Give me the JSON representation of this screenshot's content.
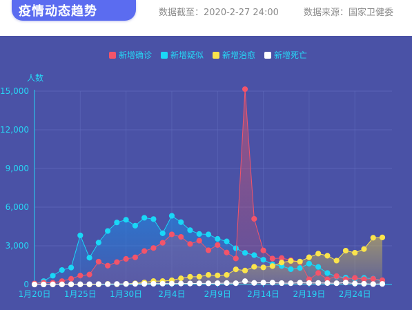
{
  "header": {
    "title": "疫情动态趋势",
    "data_time": "数据截至：2020-2-27 24:00",
    "data_source": "数据来源：国家卫健委"
  },
  "colors": {
    "confirmed": "#f3546a",
    "suspected": "#1ad7f7",
    "cured": "#fbe44c",
    "dead": "#ffffff",
    "background": "#4a52a6",
    "axis": "#27d6f5"
  },
  "chart_data": {
    "type": "line",
    "ylabel": "人数",
    "ylim": [
      0,
      15000
    ],
    "yticks": [
      "0",
      "3,000",
      "6,000",
      "9,000",
      "12,000",
      "15,000"
    ],
    "ytick_values": [
      0,
      3000,
      6000,
      9000,
      12000,
      15000
    ],
    "xtick_labels": [
      "1月20日",
      "1月25日",
      "1月30日",
      "2月4日",
      "2月9日",
      "2月14日",
      "2月19日",
      "2月24日"
    ],
    "xtick_indices": [
      0,
      5,
      10,
      15,
      20,
      25,
      30,
      35
    ],
    "legend": [
      "新增确诊",
      "新增疑似",
      "新增治愈",
      "新增死亡"
    ],
    "grid": true,
    "legend_position": "top-center",
    "x": [
      "1月20日",
      "1月21日",
      "1月22日",
      "1月23日",
      "1月24日",
      "1月25日",
      "1月26日",
      "1月27日",
      "1月28日",
      "1月29日",
      "1月30日",
      "1月31日",
      "2月1日",
      "2月2日",
      "2月3日",
      "2月4日",
      "2月5日",
      "2月6日",
      "2月7日",
      "2月8日",
      "2月9日",
      "2月10日",
      "2月11日",
      "2月12日",
      "2月13日",
      "2月14日",
      "2月15日",
      "2月16日",
      "2月17日",
      "2月18日",
      "2月19日",
      "2月20日",
      "2月21日",
      "2月22日",
      "2月23日",
      "2月24日",
      "2月25日",
      "2月26日",
      "2月27日"
    ],
    "series": [
      {
        "name": "新增确诊",
        "key": "confirmed",
        "values": [
          77,
          149,
          131,
          259,
          444,
          688,
          769,
          1771,
          1459,
          1737,
          1982,
          2102,
          2590,
          2829,
          3235,
          3887,
          3694,
          3143,
          3399,
          2656,
          3062,
          2478,
          2015,
          15152,
          5090,
          2641,
          2009,
          2048,
          1886,
          1749,
          394,
          889,
          397,
          648,
          409,
          508,
          406,
          433,
          327
        ]
      },
      {
        "name": "新增疑似",
        "key": "suspected",
        "values": [
          27,
          257,
          680,
          1118,
          1309,
          3806,
          2077,
          3248,
          4148,
          4812,
          5019,
          4562,
          5173,
          5072,
          3971,
          5328,
          4833,
          4214,
          3916,
          3885,
          3536,
          3342,
          2807,
          2450,
          2277,
          1918,
          1563,
          1432,
          1185,
          1277,
          1614,
          1361,
          882,
          620,
          530,
          439,
          508,
          452,
          248
        ]
      },
      {
        "name": "新增治愈",
        "key": "cured",
        "values": [
          0,
          3,
          0,
          6,
          6,
          11,
          2,
          9,
          43,
          21,
          47,
          85,
          157,
          262,
          262,
          325,
          477,
          596,
          601,
          744,
          706,
          744,
          1171,
          1081,
          1373,
          1323,
          1425,
          1701,
          1824,
          1779,
          2109,
          2393,
          2230,
          1852,
          2621,
          2461,
          2750,
          3622,
          3649
        ]
      },
      {
        "name": "新增死亡",
        "key": "dead",
        "values": [
          0,
          3,
          8,
          8,
          16,
          15,
          24,
          26,
          26,
          38,
          43,
          46,
          45,
          57,
          64,
          65,
          73,
          73,
          86,
          89,
          97,
          108,
          97,
          254,
          121,
          143,
          142,
          105,
          98,
          136,
          114,
          118,
          109,
          97,
          150,
          71,
          52,
          29,
          44
        ]
      }
    ]
  }
}
